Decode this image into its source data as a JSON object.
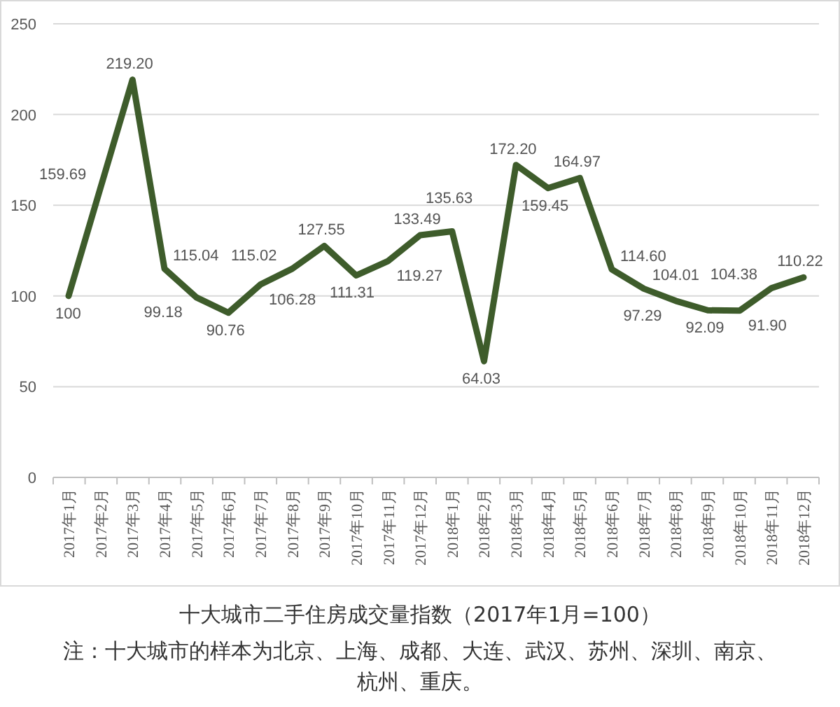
{
  "chart_data": {
    "type": "line",
    "title": "十大城市二手住房成交量指数（2017年1月=100）",
    "annotations": [
      "注：十大城市的样本为北京、上海、成都、大连、武汉、苏州、深圳、南京、杭州、重庆。"
    ],
    "categories": [
      "2017年1月",
      "2017年2月",
      "2017年3月",
      "2017年4月",
      "2017年5月",
      "2017年6月",
      "2017年7月",
      "2017年8月",
      "2017年9月",
      "2017年10月",
      "2017年11月",
      "2017年12月",
      "2018年1月",
      "2018年2月",
      "2018年3月",
      "2018年4月",
      "2018年5月",
      "2018年6月",
      "2018年7月",
      "2018年8月",
      "2018年9月",
      "2018年10月",
      "2018年11月",
      "2018年12月"
    ],
    "series": [
      {
        "color": "#3e5c2b",
        "values": [
          100,
          159.69,
          219.2,
          115.04,
          99.18,
          90.76,
          106.28,
          115.02,
          127.55,
          111.31,
          119.27,
          133.49,
          135.63,
          64.03,
          172.2,
          159.45,
          164.97,
          114.6,
          104.01,
          97.29,
          92.09,
          91.9,
          104.38,
          110.22
        ],
        "value_labels": [
          "100",
          "159.69",
          "219.20",
          "115.04",
          "99.18",
          "90.76",
          "106.28",
          "115.02",
          "127.55",
          "111.31",
          "119.27",
          "133.49",
          "135.63",
          "64.03",
          "172.20",
          "159.45",
          "164.97",
          "114.60",
          "104.01",
          "97.29",
          "92.09",
          "91.90",
          "104.38",
          "110.22"
        ]
      }
    ],
    "ylim": [
      0,
      250
    ],
    "yticks": [
      0,
      50,
      100,
      150,
      200,
      250
    ],
    "grid": "y",
    "marker": "none",
    "line_style": "solid"
  }
}
